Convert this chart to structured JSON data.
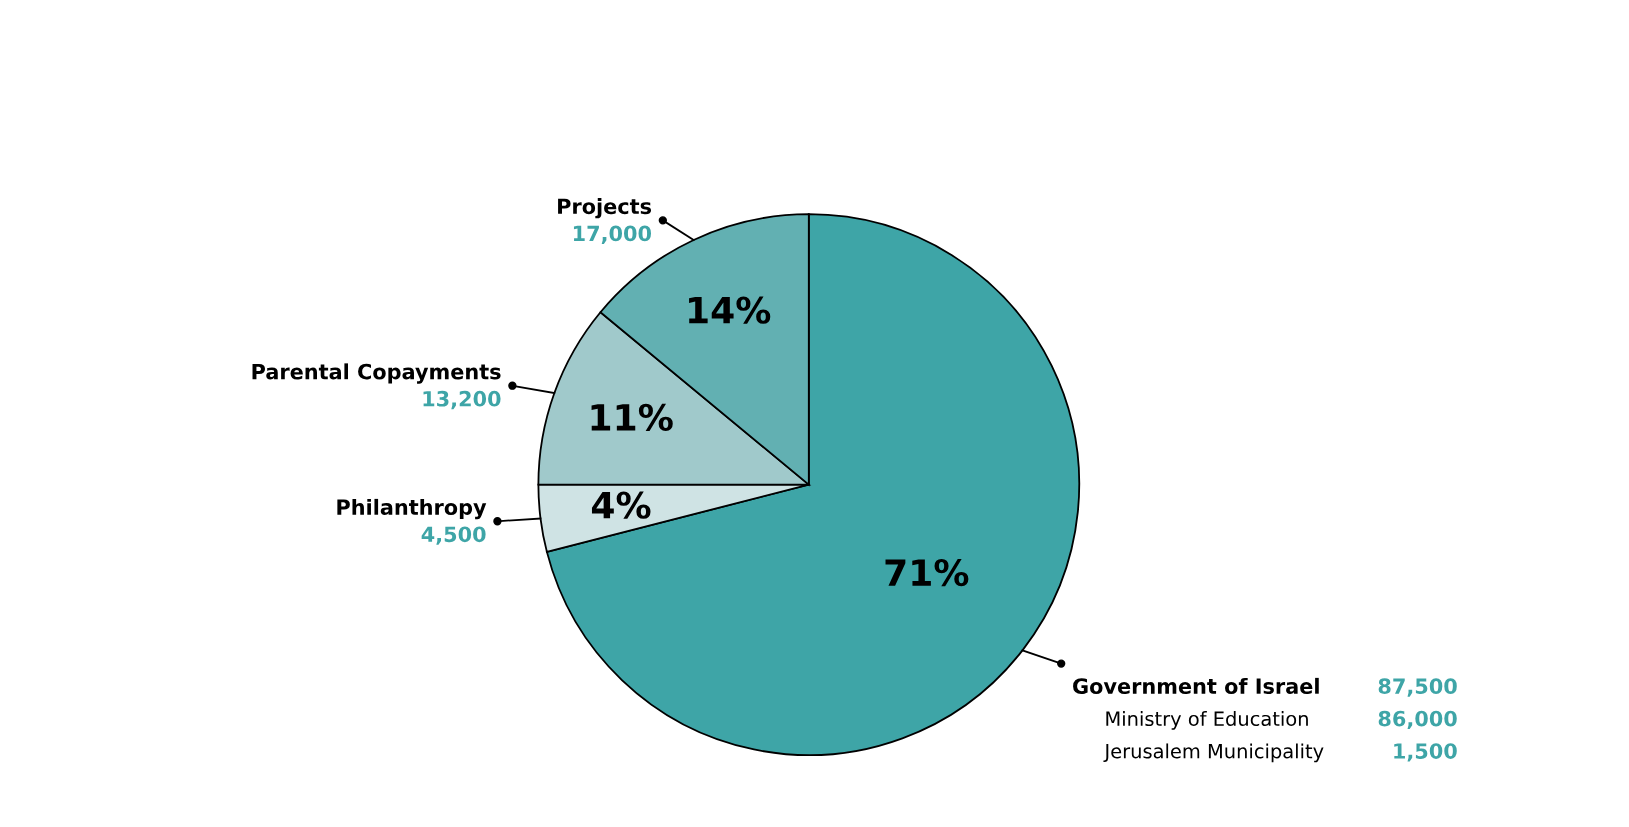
{
  "chart_data": {
    "type": "pie",
    "categories": [
      "Government of Israel",
      "Philanthropy",
      "Parental Copayments",
      "Projects"
    ],
    "values": [
      71,
      4,
      11,
      14
    ],
    "colors": [
      "#3ea5a7",
      "#cfe3e4",
      "#a0c9cb",
      "#62b0b2"
    ],
    "value_labels": [
      "71%",
      "4%",
      "11%",
      "14%"
    ],
    "data_labels": true,
    "annotations": [
      "87,500",
      "4,500",
      "13,200",
      "17,000",
      "Ministry of Education",
      "86,000",
      "Jerusalem Municipality",
      "1,500"
    ]
  }
}
